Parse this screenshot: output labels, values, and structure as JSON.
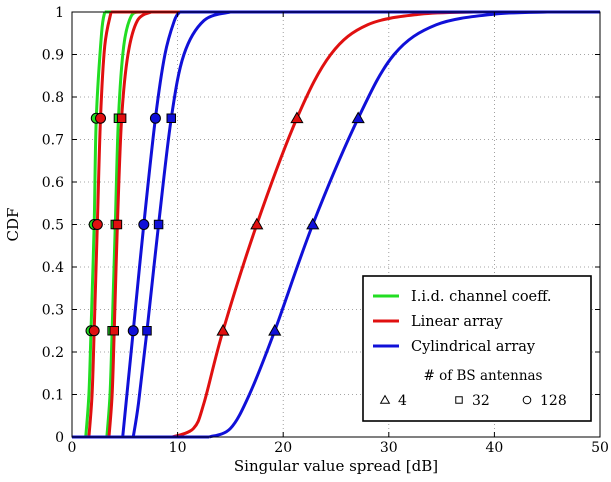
{
  "chart_data": {
    "type": "line",
    "title": "",
    "xlabel": "Singular value spread [dB]",
    "ylabel": "CDF",
    "xlim": [
      0,
      50
    ],
    "ylim": [
      0,
      1
    ],
    "x_ticks": [
      "0",
      "10",
      "20",
      "30",
      "40",
      "50"
    ],
    "y_ticks": [
      "0",
      "0.1",
      "0.2",
      "0.3",
      "0.4",
      "0.5",
      "0.6",
      "0.7",
      "0.8",
      "0.9",
      "1"
    ],
    "grid": true,
    "legend_position": "lower-right",
    "series_legend": [
      {
        "label": "I.i.d. channel coeff.",
        "color": "#22dd22"
      },
      {
        "label": "Linear array",
        "color": "#e01010"
      },
      {
        "label": "Cylindrical array",
        "color": "#1010d8"
      }
    ],
    "marker_legend_title": "# of BS antennas",
    "marker_legend": [
      {
        "shape": "triangle",
        "label": "4"
      },
      {
        "shape": "square",
        "label": "32"
      },
      {
        "shape": "circle",
        "label": "128"
      }
    ],
    "series": [
      {
        "group": "iid",
        "antennas": "128",
        "color": "#22dd22",
        "points": [
          [
            1.3,
            0
          ],
          [
            1.6,
            0.1
          ],
          [
            1.8,
            0.25
          ],
          [
            2.1,
            0.5
          ],
          [
            2.3,
            0.75
          ],
          [
            2.8,
            0.95
          ],
          [
            3.1,
            1
          ]
        ]
      },
      {
        "group": "iid",
        "antennas": "32",
        "color": "#22dd22",
        "points": [
          [
            3.3,
            0
          ],
          [
            3.6,
            0.1
          ],
          [
            3.8,
            0.25
          ],
          [
            4.1,
            0.5
          ],
          [
            4.4,
            0.75
          ],
          [
            4.9,
            0.92
          ],
          [
            5.6,
            0.99
          ],
          [
            6.5,
            1
          ]
        ]
      },
      {
        "group": "linear",
        "antennas": "128",
        "color": "#e01010",
        "points": [
          [
            1.6,
            0
          ],
          [
            1.9,
            0.1
          ],
          [
            2.1,
            0.25
          ],
          [
            2.4,
            0.5
          ],
          [
            2.7,
            0.75
          ],
          [
            3.1,
            0.92
          ],
          [
            3.7,
            1
          ]
        ]
      },
      {
        "group": "linear",
        "antennas": "32",
        "color": "#e01010",
        "points": [
          [
            3.5,
            0
          ],
          [
            3.8,
            0.1
          ],
          [
            4.0,
            0.25
          ],
          [
            4.3,
            0.5
          ],
          [
            4.7,
            0.75
          ],
          [
            5.3,
            0.9
          ],
          [
            6.2,
            0.98
          ],
          [
            7.5,
            1
          ]
        ]
      },
      {
        "group": "linear",
        "antennas": "4",
        "color": "#e01010",
        "points": [
          [
            9.5,
            0
          ],
          [
            11.5,
            0.02
          ],
          [
            12.5,
            0.08
          ],
          [
            14.3,
            0.25
          ],
          [
            17.5,
            0.5
          ],
          [
            21.3,
            0.75
          ],
          [
            24.5,
            0.9
          ],
          [
            28,
            0.97
          ],
          [
            33,
            0.995
          ],
          [
            38,
            1
          ]
        ]
      },
      {
        "group": "cylindrical",
        "antennas": "128",
        "color": "#1010d8",
        "points": [
          [
            4.8,
            0
          ],
          [
            5.2,
            0.1
          ],
          [
            5.8,
            0.25
          ],
          [
            6.8,
            0.5
          ],
          [
            7.9,
            0.75
          ],
          [
            8.8,
            0.9
          ],
          [
            9.7,
            0.98
          ],
          [
            10.2,
            1
          ]
        ]
      },
      {
        "group": "cylindrical",
        "antennas": "32",
        "color": "#1010d8",
        "points": [
          [
            5.8,
            0
          ],
          [
            6.3,
            0.08
          ],
          [
            7.1,
            0.25
          ],
          [
            8.2,
            0.5
          ],
          [
            9.4,
            0.75
          ],
          [
            10.6,
            0.9
          ],
          [
            12.5,
            0.98
          ],
          [
            15,
            1
          ]
        ]
      },
      {
        "group": "cylindrical",
        "antennas": "4",
        "color": "#1010d8",
        "points": [
          [
            13,
            0
          ],
          [
            15,
            0.02
          ],
          [
            16.8,
            0.1
          ],
          [
            19.2,
            0.25
          ],
          [
            22.8,
            0.5
          ],
          [
            27.1,
            0.75
          ],
          [
            30.5,
            0.9
          ],
          [
            34.5,
            0.97
          ],
          [
            40,
            0.995
          ],
          [
            45,
            1
          ]
        ]
      }
    ],
    "markers": [
      {
        "series_group": "iid",
        "shape": "circle",
        "points": [
          [
            1.8,
            0.25
          ],
          [
            2.1,
            0.5
          ],
          [
            2.3,
            0.75
          ]
        ]
      },
      {
        "series_group": "iid",
        "shape": "square",
        "points": [
          [
            3.8,
            0.25
          ],
          [
            4.1,
            0.5
          ],
          [
            4.4,
            0.75
          ]
        ]
      },
      {
        "series_group": "linear",
        "shape": "circle",
        "points": [
          [
            2.1,
            0.25
          ],
          [
            2.4,
            0.5
          ],
          [
            2.7,
            0.75
          ]
        ]
      },
      {
        "series_group": "linear",
        "shape": "square",
        "points": [
          [
            4.0,
            0.25
          ],
          [
            4.3,
            0.5
          ],
          [
            4.7,
            0.75
          ]
        ]
      },
      {
        "series_group": "linear",
        "shape": "triangle",
        "points": [
          [
            14.3,
            0.25
          ],
          [
            17.5,
            0.5
          ],
          [
            21.3,
            0.75
          ]
        ]
      },
      {
        "series_group": "cylindrical",
        "shape": "circle",
        "points": [
          [
            5.8,
            0.25
          ],
          [
            6.8,
            0.5
          ],
          [
            7.9,
            0.75
          ]
        ]
      },
      {
        "series_group": "cylindrical",
        "shape": "square",
        "points": [
          [
            7.1,
            0.25
          ],
          [
            8.2,
            0.5
          ],
          [
            9.4,
            0.75
          ]
        ]
      },
      {
        "series_group": "cylindrical",
        "shape": "triangle",
        "points": [
          [
            19.2,
            0.25
          ],
          [
            22.8,
            0.5
          ],
          [
            27.1,
            0.75
          ]
        ]
      }
    ]
  }
}
